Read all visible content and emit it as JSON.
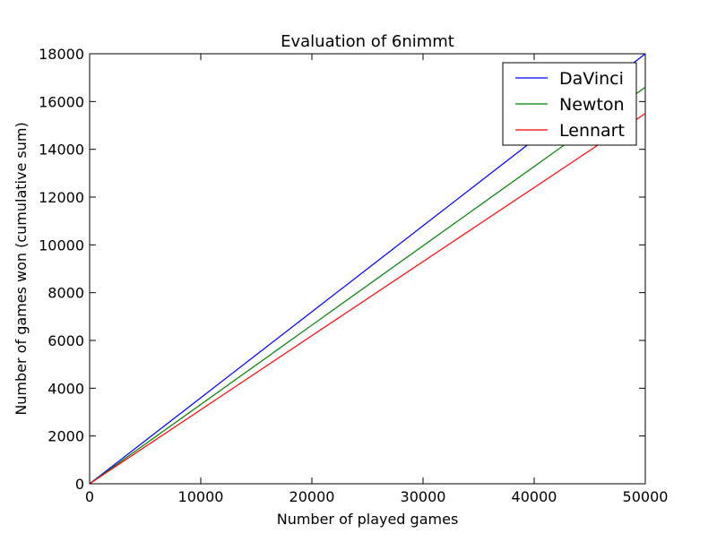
{
  "chart_data": {
    "type": "line",
    "title": "Evaluation of 6nimmt",
    "xlabel": "Number of played games",
    "ylabel": "Number of games won (cumulative sum)",
    "xlim": [
      0,
      50000
    ],
    "ylim": [
      0,
      18000
    ],
    "xticks": [
      0,
      10000,
      20000,
      30000,
      40000,
      50000
    ],
    "yticks": [
      0,
      2000,
      4000,
      6000,
      8000,
      10000,
      12000,
      14000,
      16000,
      18000
    ],
    "grid": false,
    "legend_position": "top-right",
    "series": [
      {
        "name": "DaVinci",
        "color": "#0000ff",
        "x": [
          0,
          5000,
          10000,
          15000,
          20000,
          25000,
          30000,
          35000,
          40000,
          45000,
          50000
        ],
        "y": [
          0,
          1800,
          3600,
          5400,
          7200,
          9000,
          10800,
          12600,
          14400,
          16200,
          18000
        ]
      },
      {
        "name": "Newton",
        "color": "#008000",
        "x": [
          0,
          5000,
          10000,
          15000,
          20000,
          25000,
          30000,
          35000,
          40000,
          45000,
          50000
        ],
        "y": [
          0,
          1660,
          3320,
          4980,
          6640,
          8300,
          9960,
          11620,
          13280,
          14940,
          16600
        ]
      },
      {
        "name": "Lennart",
        "color": "#ff0000",
        "x": [
          0,
          5000,
          10000,
          15000,
          20000,
          25000,
          30000,
          35000,
          40000,
          45000,
          50000
        ],
        "y": [
          0,
          1550,
          3100,
          4650,
          6200,
          7750,
          9300,
          10850,
          12400,
          13950,
          15500
        ]
      }
    ]
  }
}
